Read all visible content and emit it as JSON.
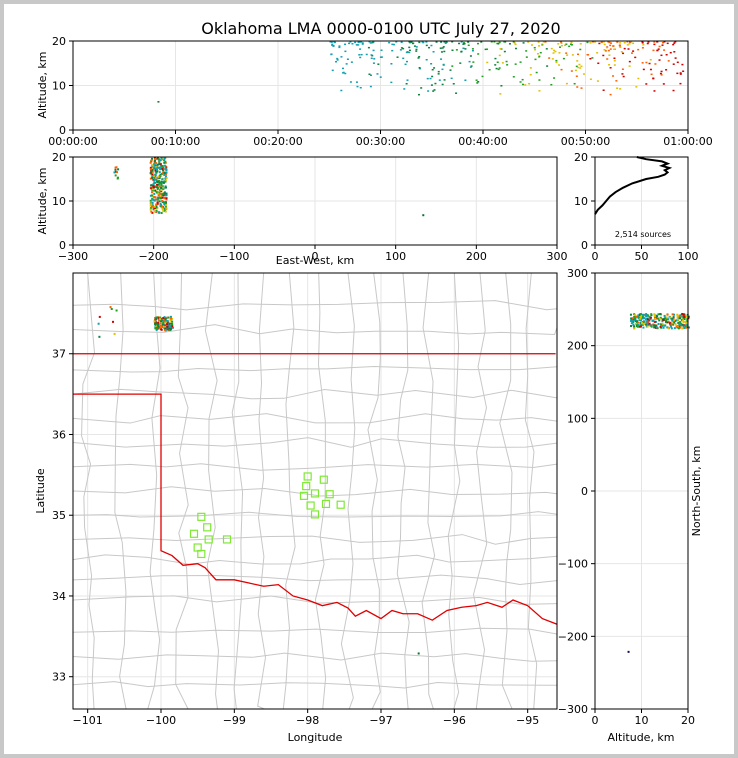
{
  "chart_data": [
    {
      "panel": "time-altitude",
      "type": "scatter",
      "title": "Oklahoma LMA 0000-0100 UTC July 27, 2020",
      "xlabel": "",
      "ylabel": "Altitude, km",
      "xlim": [
        "00:00:00",
        "01:00:00"
      ],
      "ylim": [
        0,
        20
      ],
      "xticks": [
        "00:00:00",
        "00:10:00",
        "00:20:00",
        "00:30:00",
        "00:40:00",
        "00:50:00",
        "01:00:00"
      ],
      "yticks": [
        "0",
        "10",
        "20"
      ],
      "grid": true,
      "color_scale": "time",
      "source_clusters": [
        {
          "t_start_min": 25,
          "t_end_min": 59.5,
          "alt_min_km": 8,
          "alt_max_km": 20,
          "density": "high"
        },
        {
          "t_start_min": 8.2,
          "t_end_min": 8.4,
          "alt_min_km": 6.5,
          "alt_max_km": 6.7,
          "density": "single"
        }
      ]
    },
    {
      "panel": "east-west-altitude",
      "type": "scatter",
      "xlabel": "East-West, km",
      "ylabel": "Altitude, km",
      "xlim": [
        -300,
        300
      ],
      "ylim": [
        0,
        20
      ],
      "xticks": [
        "−300",
        "−200",
        "−100",
        "0",
        "100",
        "200",
        "300"
      ],
      "yticks": [
        "0",
        "10",
        "20"
      ],
      "grid": true,
      "source_clusters": [
        {
          "x_min_km": -205,
          "x_max_km": -185,
          "alt_min_km": 7.5,
          "alt_max_km": 20,
          "density": "high"
        },
        {
          "x_min_km": -250,
          "x_max_km": -245,
          "alt_min_km": 15,
          "alt_max_km": 19.5,
          "density": "low"
        },
        {
          "x_min_km": 133,
          "x_max_km": 133,
          "alt_min_km": 7,
          "alt_max_km": 7,
          "density": "single"
        }
      ]
    },
    {
      "panel": "altitude-histogram",
      "type": "line",
      "xlim": [
        0,
        100
      ],
      "ylim": [
        0,
        20
      ],
      "xticks": [
        "0",
        "50",
        "100"
      ],
      "yticks": [
        "0",
        "10",
        "20"
      ],
      "grid": true,
      "annotation": "2,514 sources",
      "x": [
        0,
        3,
        8,
        12,
        16,
        22,
        30,
        40,
        55,
        68,
        75,
        78,
        75,
        80,
        72,
        78,
        72,
        55,
        45
      ],
      "y": [
        7,
        8,
        9,
        10,
        11,
        12,
        13,
        14,
        15,
        15.5,
        16,
        16.5,
        17,
        17.5,
        18,
        18.5,
        19,
        19.5,
        20
      ]
    },
    {
      "panel": "plan-view",
      "type": "scatter",
      "xlabel": "Longitude",
      "ylabel": "Latitude",
      "xlim": [
        -101.2,
        -94.6
      ],
      "ylim": [
        32.6,
        38
      ],
      "xticks": [
        "−101",
        "−100",
        "−99",
        "−98",
        "−97",
        "−96",
        "−95"
      ],
      "yticks": [
        "33",
        "34",
        "35",
        "36",
        "37"
      ],
      "grid": true,
      "source_clusters": [
        {
          "lon_min": -100.1,
          "lon_max": -99.85,
          "lat_min": 37.3,
          "lat_max": 37.47,
          "density": "high"
        },
        {
          "lon_min": -100.9,
          "lon_max": -100.6,
          "lat_min": 37.1,
          "lat_max": 37.75,
          "density": "low"
        },
        {
          "lon_min": -96.5,
          "lon_max": -96.5,
          "lat_min": 33.3,
          "lat_max": 33.3,
          "density": "single"
        }
      ],
      "stations": [
        {
          "lon": -99.45,
          "lat": 34.98
        },
        {
          "lon": -99.37,
          "lat": 34.85
        },
        {
          "lon": -99.55,
          "lat": 34.77
        },
        {
          "lon": -99.35,
          "lat": 34.7
        },
        {
          "lon": -99.5,
          "lat": 34.6
        },
        {
          "lon": -99.45,
          "lat": 34.52
        },
        {
          "lon": -99.1,
          "lat": 34.7
        },
        {
          "lon": -98.0,
          "lat": 35.48
        },
        {
          "lon": -98.02,
          "lat": 35.36
        },
        {
          "lon": -98.05,
          "lat": 35.24
        },
        {
          "lon": -97.9,
          "lat": 35.27
        },
        {
          "lon": -97.78,
          "lat": 35.44
        },
        {
          "lon": -97.7,
          "lat": 35.26
        },
        {
          "lon": -97.75,
          "lat": 35.14
        },
        {
          "lon": -97.55,
          "lat": 35.13
        },
        {
          "lon": -97.96,
          "lat": 35.12
        },
        {
          "lon": -97.9,
          "lat": 35.01
        }
      ]
    },
    {
      "panel": "altitude-north-south",
      "type": "scatter",
      "xlabel": "Altitude, km",
      "ylabel": "North-South, km",
      "xlim": [
        0,
        20
      ],
      "ylim": [
        -300,
        300
      ],
      "xticks": [
        "0",
        "10",
        "20"
      ],
      "yticks": [
        "−300",
        "−200",
        "−100",
        "0",
        "100",
        "200",
        "300"
      ],
      "grid": true,
      "source_clusters": [
        {
          "alt_min_km": 7.5,
          "alt_max_km": 20,
          "ns_min_km": 225,
          "ns_max_km": 245,
          "density": "high"
        },
        {
          "alt_min_km": 7,
          "alt_max_km": 7,
          "ns_min_km": -220,
          "ns_max_km": -220,
          "density": "single"
        }
      ]
    }
  ]
}
